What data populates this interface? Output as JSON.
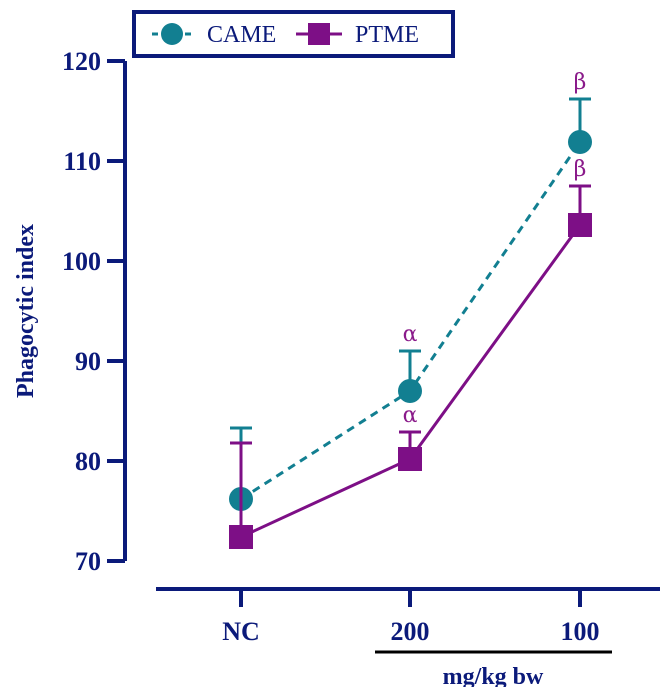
{
  "chart_data": {
    "type": "line",
    "categories": [
      "NC",
      "200",
      "100"
    ],
    "xlabel_group": "mg/kg bw",
    "ylabel": "Phagocytic index",
    "ylim": [
      70,
      120
    ],
    "yticks": [
      70,
      80,
      90,
      100,
      110,
      120
    ],
    "legend_position": "top-left",
    "series": [
      {
        "name": "CAME",
        "values": [
          76.2,
          87.0,
          111.9
        ],
        "errors": [
          7.1,
          4.0,
          4.3
        ],
        "annotations": [
          "",
          "α",
          "β"
        ],
        "color": "#127f91",
        "marker": "circle",
        "line": "dashed"
      },
      {
        "name": "PTME",
        "values": [
          72.4,
          80.2,
          103.6
        ],
        "errors": [
          9.4,
          2.7,
          3.9
        ],
        "annotations": [
          "",
          "α",
          "β"
        ],
        "color": "#7d0f86",
        "marker": "square",
        "line": "solid"
      }
    ],
    "axis_color": "#0b1a7a"
  }
}
